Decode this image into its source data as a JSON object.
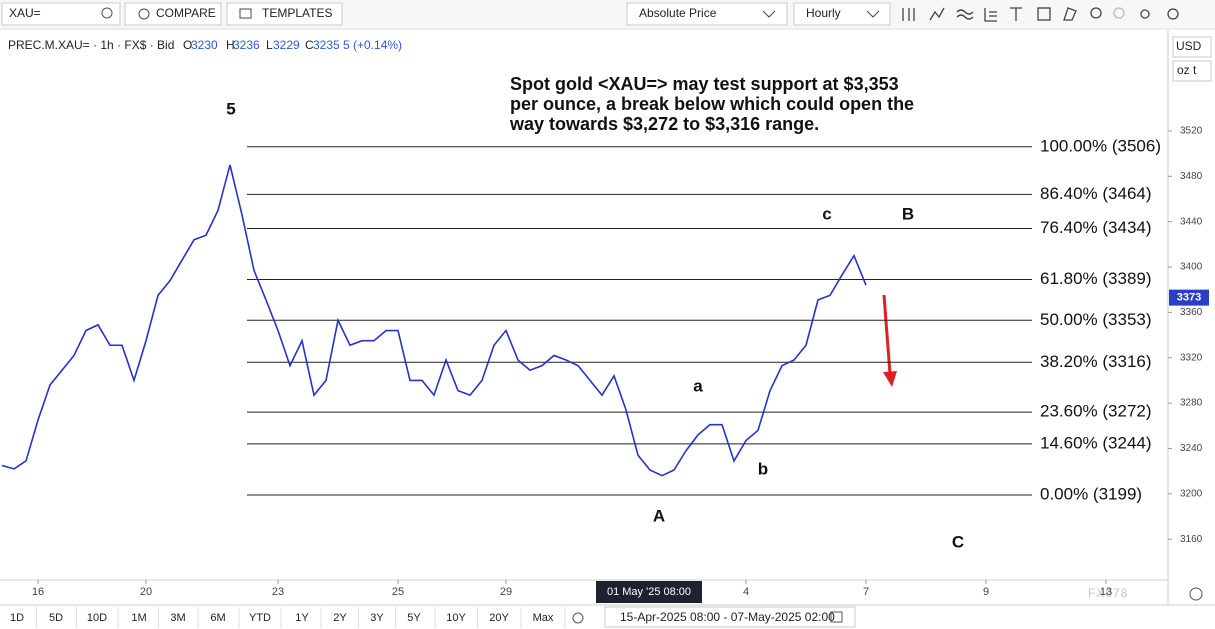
{
  "toolbar": {
    "search": "XAU=",
    "compare": "COMPARE",
    "templates": "TEMPLATES",
    "price_mode": "Absolute Price",
    "interval": "Hourly"
  },
  "chart_data": {
    "type": "line",
    "instrument": "PREC.M.XAU= · 1h · FX$ · Bid",
    "ohlc_labels": [
      "O",
      "H",
      "L",
      "C"
    ],
    "ohlc_values": [
      3230,
      3236,
      3229,
      3235
    ],
    "change": "5 (+0.14%)",
    "annotation": [
      "Spot gold <XAU=> may test support at $3,353",
      "per ounce, a break below which could open the",
      "way towards $3,272 to $3,316 range."
    ],
    "currency": "USD",
    "unit": "oz t",
    "categories": [
      null,
      null,
      null,
      "16",
      null,
      null,
      null,
      null,
      null,
      null,
      null,
      null,
      "20",
      null,
      null,
      null,
      null,
      null,
      null,
      null,
      null,
      null,
      null,
      "23",
      null,
      null,
      null,
      null,
      null,
      null,
      null,
      null,
      null,
      "25",
      null,
      null,
      null,
      null,
      null,
      null,
      null,
      null,
      "29",
      null,
      null,
      null,
      null,
      null,
      null,
      null,
      null,
      null,
      null,
      null,
      null,
      null,
      null,
      null,
      null,
      null,
      null,
      null,
      "4",
      null,
      null,
      null,
      null,
      null,
      null,
      null,
      null,
      null,
      "7",
      null,
      null,
      null,
      null,
      null,
      null,
      null,
      null,
      null,
      "9",
      null,
      null,
      null,
      null,
      null,
      null,
      null,
      null,
      null,
      "13"
    ],
    "series": [
      {
        "name": "XAU=",
        "color": "#2433c8",
        "values": [
          3225,
          3222,
          3229,
          3265,
          3296,
          3309,
          3322,
          3344,
          3349,
          3331,
          3331,
          3300,
          3335,
          3375,
          3388,
          3406,
          3424,
          3428,
          3450,
          3490,
          3446,
          3397,
          3371,
          3344,
          3313,
          3335,
          3287,
          3300,
          3353,
          3331,
          3335,
          3335,
          3344,
          3344,
          3300,
          3300,
          3287,
          3318,
          3291,
          3287,
          3300,
          3331,
          3344,
          3318,
          3309,
          3313,
          3322,
          3318,
          3313,
          3300,
          3287,
          3304,
          3274,
          3234,
          3221,
          3216,
          3221,
          3238,
          3252,
          3261,
          3261,
          3229,
          3247,
          3256,
          3291,
          3313,
          3318,
          3331,
          3371,
          3375,
          3393,
          3410,
          3384,
          null,
          null,
          null,
          null,
          null,
          null,
          null,
          null,
          null,
          null,
          null,
          null,
          null,
          null,
          null,
          null,
          null,
          null,
          null,
          null
        ]
      }
    ],
    "ylim": [
      3124,
      3609
    ],
    "yticks": [
      3160,
      3200,
      3240,
      3280,
      3320,
      3360,
      3400,
      3440,
      3480,
      3520
    ],
    "last_price": 3373,
    "fib_levels": [
      {
        "label": "100.00% (3506)",
        "value": 3506
      },
      {
        "label": "86.40% (3464)",
        "value": 3464
      },
      {
        "label": "76.40% (3434)",
        "value": 3434
      },
      {
        "label": "61.80% (3389)",
        "value": 3389
      },
      {
        "label": "50.00% (3353)",
        "value": 3353
      },
      {
        "label": "38.20% (3316)",
        "value": 3316
      },
      {
        "label": "23.60% (3272)",
        "value": 3272
      },
      {
        "label": "14.60% (3244)",
        "value": 3244
      },
      {
        "label": "0.00% (3199)",
        "value": 3199
      }
    ],
    "wave_labels": [
      "5",
      "c",
      "B",
      "a",
      "b",
      "A",
      "C"
    ],
    "crosshair_label": "01 May '25 08:00"
  },
  "footer": {
    "ranges": [
      "1D",
      "5D",
      "10D",
      "1M",
      "3M",
      "6M",
      "YTD",
      "1Y",
      "2Y",
      "3Y",
      "5Y",
      "10Y",
      "20Y",
      "Max"
    ],
    "date_range": "15-Apr-2025 08:00 - 07-May-2025 02:00",
    "watermark": "FX678"
  }
}
